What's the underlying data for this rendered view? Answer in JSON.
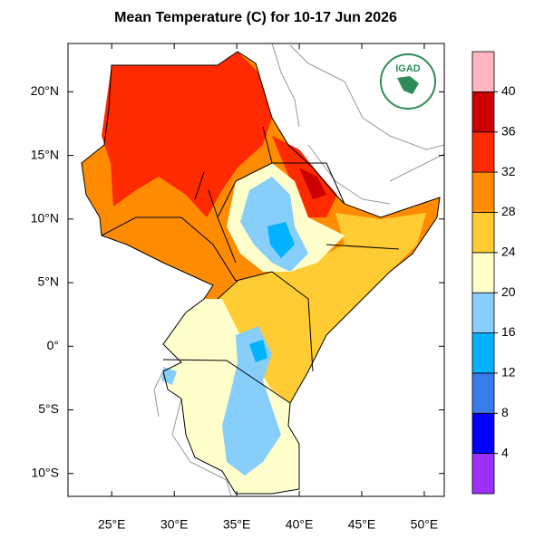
{
  "map": {
    "title": "Mean Temperature (C) for 10-17 Jun 2026",
    "xlim": [
      21.5,
      51.6
    ],
    "ylim": [
      -11.8,
      23.8
    ],
    "lon_ticks": [
      {
        "value": 25,
        "label": "25°E"
      },
      {
        "value": 30,
        "label": "30°E"
      },
      {
        "value": 35,
        "label": "35°E"
      },
      {
        "value": 40,
        "label": "40°E"
      },
      {
        "value": 45,
        "label": "45°E"
      },
      {
        "value": 50,
        "label": "50°E"
      }
    ],
    "lat_ticks": [
      {
        "value": 20,
        "label": "20°N"
      },
      {
        "value": 15,
        "label": "15°N"
      },
      {
        "value": 10,
        "label": "10°N"
      },
      {
        "value": 5,
        "label": "5°N"
      },
      {
        "value": 0,
        "label": "0°"
      },
      {
        "value": -5,
        "label": "5°S"
      },
      {
        "value": -10,
        "label": "10°S"
      }
    ],
    "colorbar": {
      "levels": [
        4,
        8,
        12,
        16,
        20,
        24,
        28,
        32,
        36,
        40
      ],
      "colors": [
        "#9b30ff",
        "#0000ff",
        "#3a7bea",
        "#00b2ff",
        "#87cefa",
        "#ffffcc",
        "#ffcc33",
        "#ff8c00",
        "#ff2a00",
        "#cc0000",
        "#ffb6c1"
      ]
    },
    "logo_text": "IGAD"
  }
}
